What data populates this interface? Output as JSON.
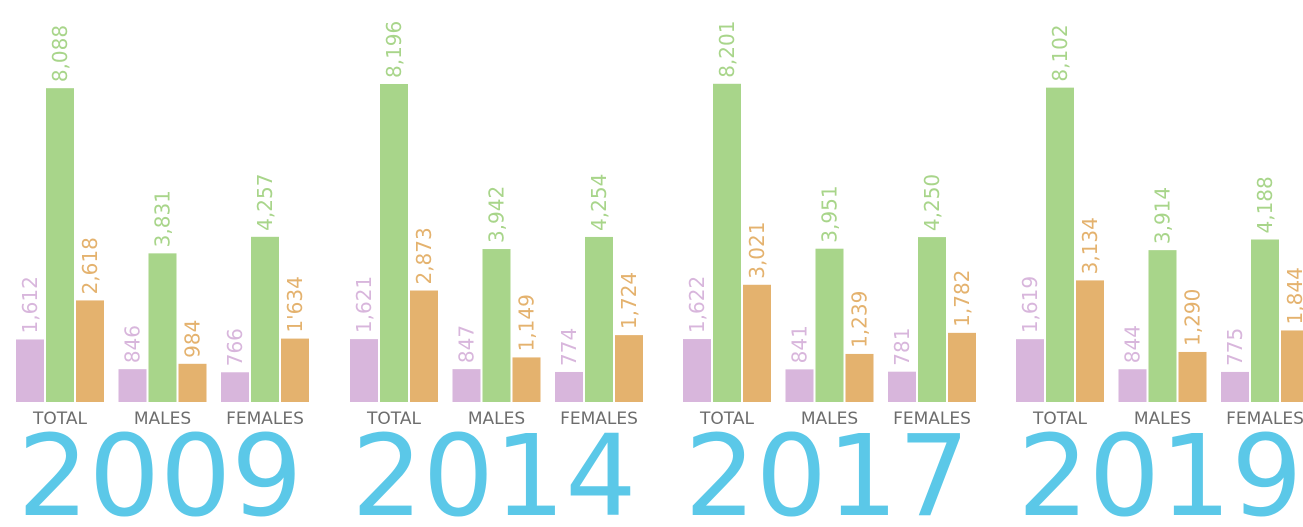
{
  "chart_data": [
    {
      "type": "bar",
      "title": "2009",
      "categories": [
        "TOTAL",
        "MALES",
        "FEMALES"
      ],
      "ylim": [
        0,
        10000
      ],
      "series": [
        {
          "color": "#d8b6dc",
          "values": [
            1612,
            846,
            766
          ],
          "value_labels": [
            "1,612",
            "846",
            "766"
          ]
        },
        {
          "color": "#a8d58a",
          "values": [
            8088,
            3831,
            4257
          ],
          "value_labels": [
            "8,088",
            "3,831",
            "4,257"
          ]
        },
        {
          "color": "#e4b26e",
          "values": [
            2618,
            984,
            1634
          ],
          "value_labels": [
            "2,618",
            "984",
            "1'634"
          ]
        }
      ]
    },
    {
      "type": "bar",
      "title": "2014",
      "categories": [
        "TOTAL",
        "MALES",
        "FEMALES"
      ],
      "ylim": [
        0,
        10000
      ],
      "series": [
        {
          "color": "#d8b6dc",
          "values": [
            1621,
            847,
            774
          ],
          "value_labels": [
            "1,621",
            "847",
            "774"
          ]
        },
        {
          "color": "#a8d58a",
          "values": [
            8196,
            3942,
            4254
          ],
          "value_labels": [
            "8,196",
            "3,942",
            "4,254"
          ]
        },
        {
          "color": "#e4b26e",
          "values": [
            2873,
            1149,
            1724
          ],
          "value_labels": [
            "2,873",
            "1,149",
            "1,724"
          ]
        }
      ]
    },
    {
      "type": "bar",
      "title": "2017",
      "categories": [
        "TOTAL",
        "MALES",
        "FEMALES"
      ],
      "ylim": [
        0,
        10000
      ],
      "series": [
        {
          "color": "#d8b6dc",
          "values": [
            1622,
            841,
            781
          ],
          "value_labels": [
            "1,622",
            "841",
            "781"
          ]
        },
        {
          "color": "#a8d58a",
          "values": [
            8201,
            3951,
            4250
          ],
          "value_labels": [
            "8,201",
            "3,951",
            "4,250"
          ]
        },
        {
          "color": "#e4b26e",
          "values": [
            3021,
            1239,
            1782
          ],
          "value_labels": [
            "3,021",
            "1,239",
            "1,782"
          ]
        }
      ]
    },
    {
      "type": "bar",
      "title": "2019",
      "categories": [
        "TOTAL",
        "MALES",
        "FEMALES"
      ],
      "ylim": [
        0,
        10000
      ],
      "series": [
        {
          "color": "#d8b6dc",
          "values": [
            1619,
            844,
            775
          ],
          "value_labels": [
            "1,619",
            "844",
            "775"
          ]
        },
        {
          "color": "#a8d58a",
          "values": [
            8102,
            3914,
            4188
          ],
          "value_labels": [
            "8,102",
            "3,914",
            "4,188"
          ]
        },
        {
          "color": "#e4b26e",
          "values": [
            3134,
            1290,
            1844
          ],
          "value_labels": [
            "3,134",
            "1,290",
            "1,844"
          ]
        }
      ]
    }
  ]
}
